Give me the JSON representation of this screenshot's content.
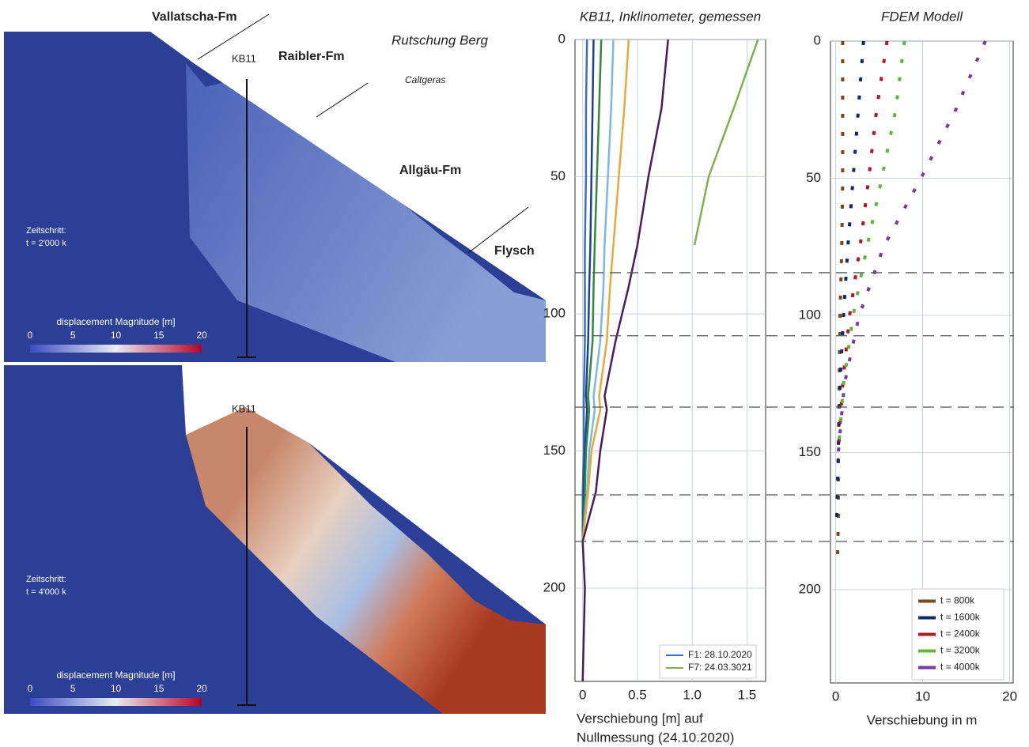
{
  "panels": [
    {
      "labels": {
        "formation_1": "Vallatscha-Fm",
        "site": "Rutschung Berg",
        "borehole": "KB11",
        "formation_2": "Raibler-Fm",
        "formation_3": "Caltgeras",
        "formation_4": "Allgäu-Fm",
        "formation_5": "Flysch"
      },
      "timestep_label": "Zeitschritt:",
      "timestep": "t = 2'000 k",
      "colorbar": {
        "label": "displacement Magnitude  [m]",
        "range": [
          0,
          20
        ],
        "ticks": [
          0,
          5,
          10,
          15,
          20
        ]
      }
    },
    {
      "labels": {
        "borehole": "KB11"
      },
      "timestep_label": "Zeitschritt:",
      "timestep": "t = 4'000 k",
      "colorbar": {
        "label": "displacement Magnitude [m]",
        "range": [
          0,
          20
        ],
        "ticks": [
          0,
          5,
          10,
          15,
          20
        ]
      }
    }
  ],
  "marker_depths": [
    85,
    108,
    134,
    166,
    183
  ],
  "chart_data": [
    {
      "type": "line",
      "orientation": "vertical",
      "title": "KB11, Inklinometer, gemessen",
      "x_label": [
        "Verschiebung [m] auf",
        "Nullmessung (24.10.2020)"
      ],
      "y": [
        0,
        25,
        50,
        75,
        90,
        110,
        130,
        135,
        150,
        165,
        183,
        200,
        234
      ],
      "xlim": [
        -0.07,
        1.67
      ],
      "xticks": [
        0,
        0.5,
        {
          "value": 1,
          "label": "1.0"
        },
        1.5
      ],
      "ylim": [
        0,
        234
      ],
      "yticks": [
        0,
        50,
        100,
        150,
        200
      ],
      "grid": true,
      "legend": "lower right",
      "series": [
        {
          "name": "F1: 28.10.2020",
          "color": "#3a6fc4",
          "values": [
            0.04,
            0.03,
            0.03,
            0.02,
            0.02,
            0.02,
            0.01,
            0.01,
            0.01,
            0,
            0,
            null,
            null
          ]
        },
        {
          "color": "#1f3f8f",
          "values": [
            0.1,
            0.09,
            0.08,
            0.07,
            0.06,
            0.05,
            0.03,
            0.04,
            0.02,
            0.01,
            0,
            null,
            null
          ]
        },
        {
          "color": "#2e8b3a",
          "values": [
            0.17,
            0.15,
            0.13,
            0.11,
            0.1,
            0.09,
            0.05,
            0.06,
            0.03,
            0.02,
            0,
            null,
            null
          ]
        },
        {
          "color": "#7ab8e8",
          "values": [
            0.28,
            0.26,
            0.23,
            0.2,
            0.19,
            0.16,
            0.1,
            0.11,
            0.06,
            0.04,
            0,
            null,
            null
          ]
        },
        {
          "color": "#e8a93a",
          "values": [
            0.42,
            0.38,
            0.33,
            0.28,
            0.25,
            0.22,
            0.15,
            0.16,
            0.08,
            0.05,
            0,
            null,
            null
          ]
        },
        {
          "color": "#4b1a63",
          "values": [
            0.78,
            0.72,
            0.6,
            0.5,
            0.42,
            0.3,
            0.2,
            0.22,
            0.16,
            0.12,
            0,
            0.02,
            0
          ]
        },
        {
          "name": "F7: 24.03.3021",
          "color": "#7fb24a",
          "values": [
            1.6,
            1.38,
            1.15,
            1.02,
            null,
            null,
            null,
            null,
            null,
            null,
            null,
            null,
            null
          ]
        }
      ]
    },
    {
      "type": "line",
      "orientation": "vertical",
      "title": "FDEM Modell",
      "x_label": [
        "Verschiebung in m"
      ],
      "y": [
        0,
        25,
        50,
        75,
        100,
        125,
        150,
        175,
        190
      ],
      "xlim": [
        -0.6,
        20.4
      ],
      "xticks": [
        0,
        10,
        20
      ],
      "ylim": [
        0,
        234
      ],
      "yticks": [
        0,
        50,
        100,
        150,
        200
      ],
      "grid": true,
      "legend": "lower right",
      "dashed": true,
      "series": [
        {
          "name": "t = 800k",
          "color": "#7a4a1a",
          "values": [
            0.8,
            0.8,
            0.8,
            0.7,
            0.5,
            0.4,
            0.3,
            0.3,
            0.2
          ]
        },
        {
          "name": "t = 1600k",
          "color": "#0d2a6b",
          "values": [
            3.2,
            2.6,
            2.0,
            1.4,
            0.9,
            0.5,
            0.3,
            0.1,
            null
          ]
        },
        {
          "name": "t = 2400k",
          "color": "#b0182a",
          "values": [
            5.9,
            4.7,
            3.8,
            2.8,
            1.6,
            0.8,
            0.3,
            null,
            null
          ]
        },
        {
          "name": "t = 3200k",
          "color": "#5fb83a",
          "values": [
            7.9,
            6.9,
            5.3,
            3.6,
            2.0,
            0.9,
            0.3,
            null,
            null
          ]
        },
        {
          "name": "t = 4000k",
          "color": "#7a3a9a",
          "values": [
            17.2,
            13.8,
            9.8,
            5.5,
            2.7,
            1.0,
            0.3,
            null,
            null
          ]
        }
      ]
    }
  ]
}
